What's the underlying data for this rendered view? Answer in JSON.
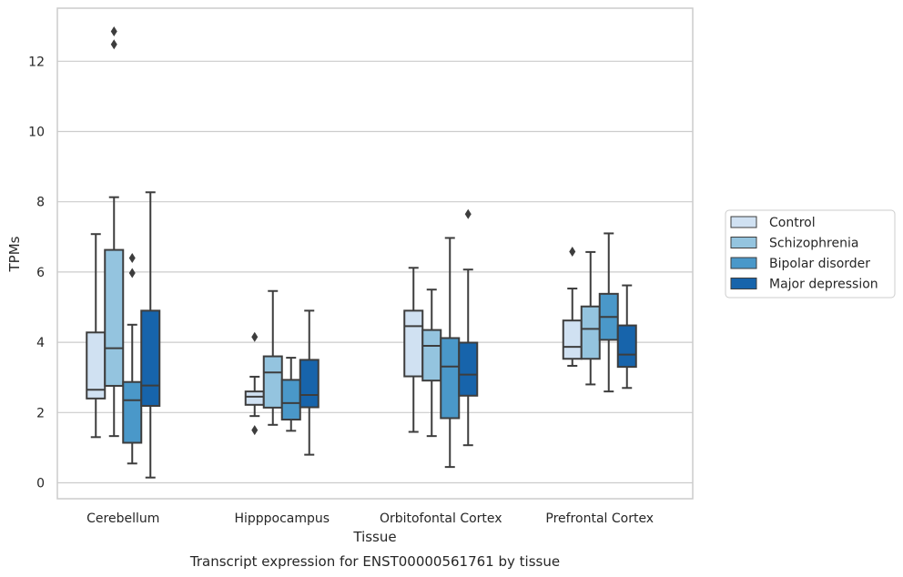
{
  "chart_data": {
    "type": "box",
    "caption": "Transcript expression for ENST00000561761 by tissue",
    "xlabel": "Tissue",
    "ylabel": "TPMs",
    "ylim": [
      -0.4,
      13.6
    ],
    "yticks": [
      0,
      2,
      4,
      6,
      8,
      10,
      12
    ],
    "grid": true,
    "legend_position": "right",
    "categories": [
      "Cerebellum",
      "Hipppocampus",
      "Orbitofontal Cortex",
      "Prefrontal Cortex"
    ],
    "series": [
      {
        "name": "Control",
        "color": "#d0e1f2",
        "boxes": [
          {
            "whisker_low": 1.3,
            "q1": 2.4,
            "median": 2.65,
            "q3": 4.28,
            "whisker_high": 7.08,
            "outliers": []
          },
          {
            "whisker_low": 1.9,
            "q1": 2.22,
            "median": 2.45,
            "q3": 2.6,
            "whisker_high": 3.02,
            "outliers": [
              4.15,
              1.5
            ]
          },
          {
            "whisker_low": 1.45,
            "q1": 3.03,
            "median": 4.46,
            "q3": 4.9,
            "whisker_high": 6.12,
            "outliers": []
          },
          {
            "whisker_low": 3.33,
            "q1": 3.53,
            "median": 3.87,
            "q3": 4.62,
            "whisker_high": 5.53,
            "outliers": [
              6.58
            ]
          }
        ]
      },
      {
        "name": "Schizophrenia",
        "color": "#94c4df",
        "boxes": [
          {
            "whisker_low": 1.33,
            "q1": 2.76,
            "median": 3.83,
            "q3": 6.63,
            "whisker_high": 8.13,
            "outliers": [
              12.85,
              12.48
            ]
          },
          {
            "whisker_low": 1.65,
            "q1": 2.14,
            "median": 3.14,
            "q3": 3.6,
            "whisker_high": 5.46,
            "outliers": []
          },
          {
            "whisker_low": 1.33,
            "q1": 2.91,
            "median": 3.9,
            "q3": 4.35,
            "whisker_high": 5.5,
            "outliers": []
          },
          {
            "whisker_low": 2.8,
            "q1": 3.53,
            "median": 4.38,
            "q3": 5.02,
            "whisker_high": 6.57,
            "outliers": []
          }
        ]
      },
      {
        "name": "Bipolar disorder",
        "color": "#4a98c9",
        "boxes": [
          {
            "whisker_low": 0.55,
            "q1": 1.14,
            "median": 2.35,
            "q3": 2.87,
            "whisker_high": 4.5,
            "outliers": [
              6.4,
              5.97
            ]
          },
          {
            "whisker_low": 1.48,
            "q1": 1.8,
            "median": 2.27,
            "q3": 2.93,
            "whisker_high": 3.56,
            "outliers": []
          },
          {
            "whisker_low": 0.45,
            "q1": 1.84,
            "median": 3.31,
            "q3": 4.12,
            "whisker_high": 6.97,
            "outliers": []
          },
          {
            "whisker_low": 2.6,
            "q1": 4.07,
            "median": 4.72,
            "q3": 5.38,
            "whisker_high": 7.1,
            "outliers": []
          }
        ]
      },
      {
        "name": "Major depression",
        "color": "#1764ab",
        "boxes": [
          {
            "whisker_low": 0.15,
            "q1": 2.19,
            "median": 2.77,
            "q3": 4.9,
            "whisker_high": 8.27,
            "outliers": []
          },
          {
            "whisker_low": 0.8,
            "q1": 2.15,
            "median": 2.5,
            "q3": 3.5,
            "whisker_high": 4.9,
            "outliers": []
          },
          {
            "whisker_low": 1.07,
            "q1": 2.48,
            "median": 3.08,
            "q3": 3.99,
            "whisker_high": 6.07,
            "outliers": [
              7.65
            ]
          },
          {
            "whisker_low": 2.7,
            "q1": 3.3,
            "median": 3.65,
            "q3": 4.48,
            "whisker_high": 5.62,
            "outliers": []
          }
        ]
      }
    ]
  }
}
